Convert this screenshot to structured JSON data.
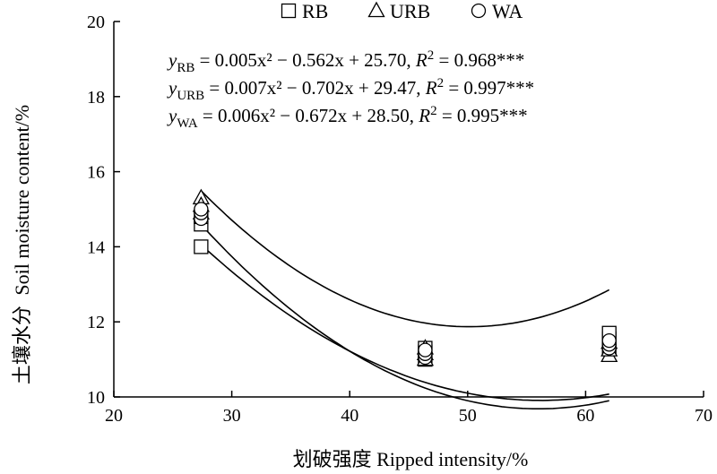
{
  "chart_data": {
    "type": "scatter",
    "xlabel": "划破强度 Ripped intensity/%",
    "ylabel_cn": "土壤水分",
    "ylabel_en": "Soil moisture content/%",
    "xlim": [
      20,
      70
    ],
    "ylim": [
      10,
      20
    ],
    "xticks": [
      20,
      30,
      40,
      50,
      60,
      70
    ],
    "yticks": [
      10,
      12,
      14,
      16,
      18,
      20
    ],
    "grid": false,
    "legend_position": "top",
    "series": [
      {
        "name": "RB",
        "marker": "square",
        "points": [
          [
            27.4,
            14.0
          ],
          [
            27.4,
            14.6
          ],
          [
            27.4,
            14.8
          ],
          [
            46.4,
            11.0
          ],
          [
            46.4,
            11.2
          ],
          [
            46.4,
            11.3
          ],
          [
            62.0,
            11.3
          ],
          [
            62.0,
            11.55
          ],
          [
            62.0,
            11.7
          ]
        ],
        "fit": {
          "a": 0.005,
          "b": -0.562,
          "c": 25.7,
          "r2": "0.968***"
        }
      },
      {
        "name": "URB",
        "marker": "triangle",
        "points": [
          [
            27.4,
            15.3
          ],
          [
            27.4,
            15.1
          ],
          [
            27.4,
            14.9
          ],
          [
            46.4,
            11.0
          ],
          [
            46.4,
            11.15
          ],
          [
            46.4,
            11.3
          ],
          [
            62.0,
            11.1
          ],
          [
            62.0,
            11.25
          ],
          [
            62.0,
            11.45
          ]
        ],
        "fit": {
          "a": 0.007,
          "b": -0.702,
          "c": 29.47,
          "r2": "0.997***"
        }
      },
      {
        "name": "WA",
        "marker": "circle",
        "points": [
          [
            27.4,
            14.75
          ],
          [
            27.4,
            14.9
          ],
          [
            27.4,
            15.0
          ],
          [
            46.4,
            11.05
          ],
          [
            46.4,
            11.15
          ],
          [
            46.4,
            11.25
          ],
          [
            62.0,
            11.3
          ],
          [
            62.0,
            11.4
          ],
          [
            62.0,
            11.5
          ]
        ],
        "fit": {
          "a": 0.006,
          "b": -0.672,
          "c": 28.5,
          "r2": "0.995***"
        }
      }
    ],
    "equations": [
      {
        "y": "y",
        "sub": "RB",
        "rhs": " = 0.005x² − 0.562x + 25.70, ",
        "r": "R",
        "sup": "2",
        "val": " = 0.968***"
      },
      {
        "y": "y",
        "sub": "URB",
        "rhs": " = 0.007x² − 0.702x + 29.47, ",
        "r": "R",
        "sup": "2",
        "val": " = 0.997***"
      },
      {
        "y": "y",
        "sub": "WA",
        "rhs": " = 0.006x² − 0.672x + 28.50, ",
        "r": "R",
        "sup": "2",
        "val": " = 0.995***"
      }
    ]
  }
}
